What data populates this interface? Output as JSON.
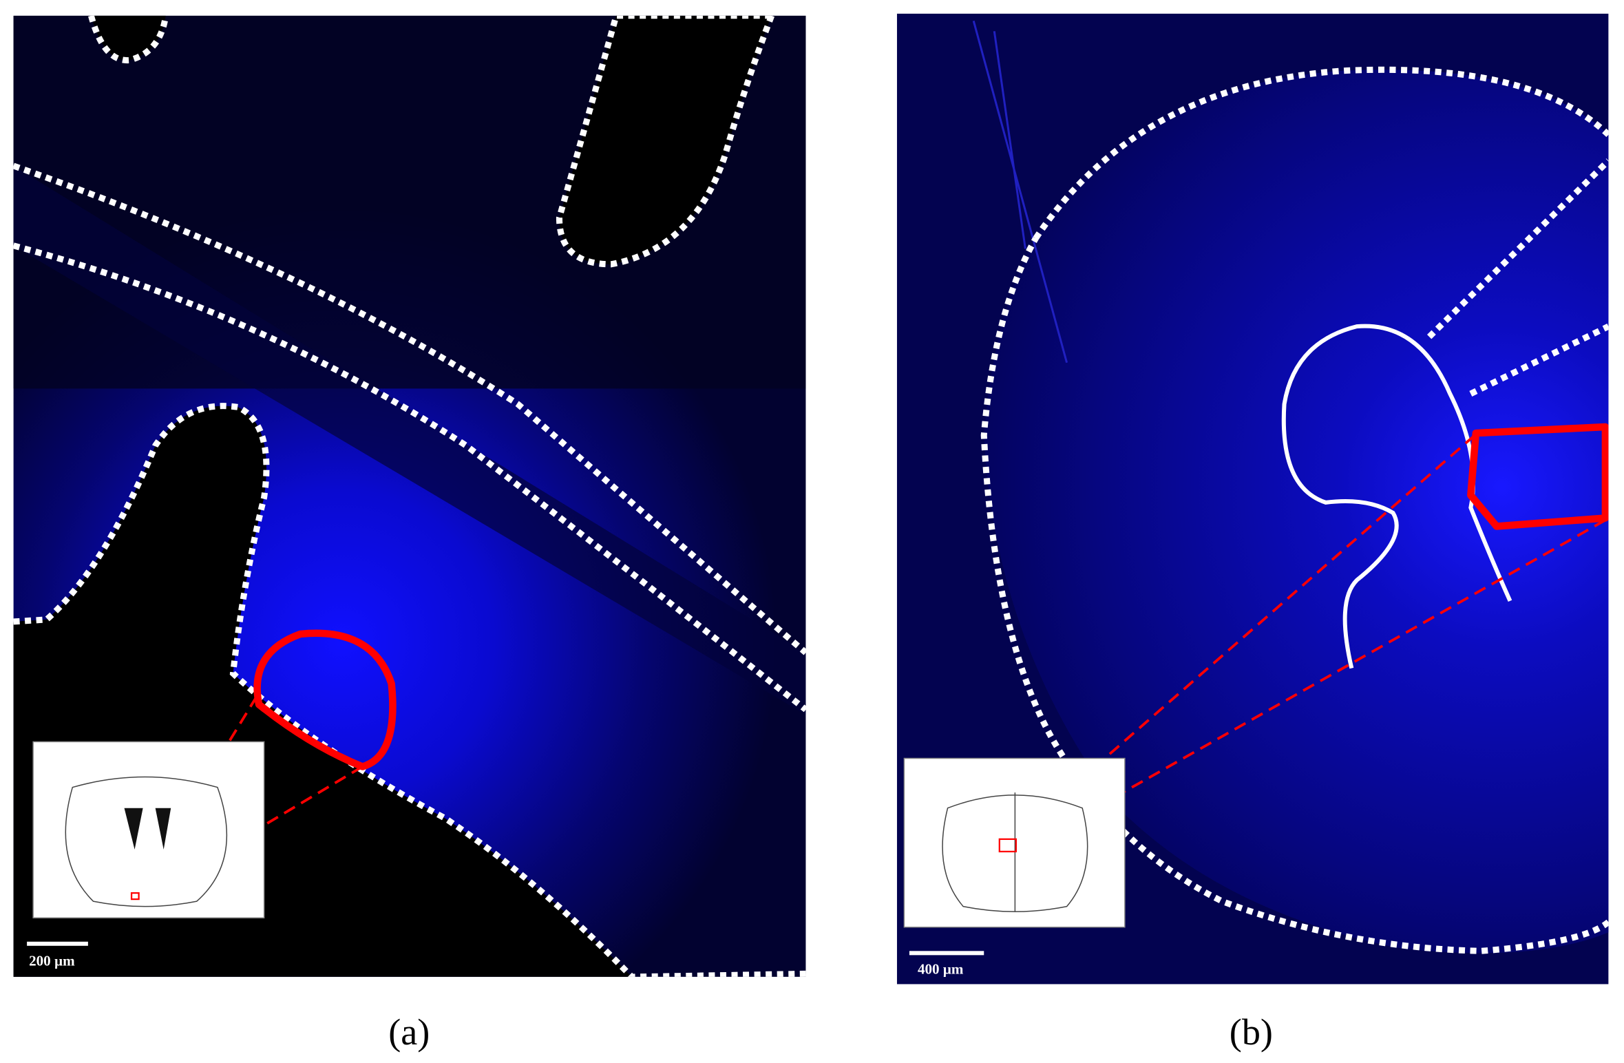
{
  "panels": [
    {
      "label": "(a)",
      "scale_bar": "200 µm"
    },
    {
      "label": "(b)",
      "scale_bar": "400 µm"
    }
  ]
}
